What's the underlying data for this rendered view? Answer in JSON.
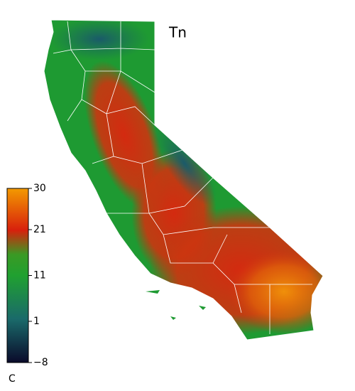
{
  "title": "Tn",
  "colorbar": {
    "unit": "C",
    "lim": [
      -8,
      30
    ],
    "ticks": [
      30,
      21,
      11,
      1,
      {
        "value": -8,
        "label": "−8"
      }
    ]
  }
}
